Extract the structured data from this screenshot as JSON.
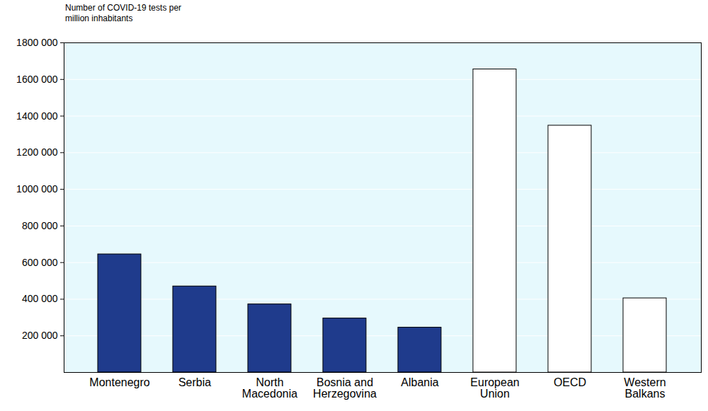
{
  "chart_data": {
    "type": "bar",
    "y_label": "Number of COVID-19 tests per million inhabitants",
    "categories": [
      "Montenegro",
      "Serbia",
      "North Macedonia",
      "Bosnia and Herzegovina",
      "Albania",
      "European Union",
      "OECD",
      "Western Balkans"
    ],
    "values": [
      645000,
      470000,
      372000,
      295000,
      245000,
      1655000,
      1348000,
      405000
    ],
    "colors": [
      "#1f3b8c",
      "#1f3b8c",
      "#1f3b8c",
      "#1f3b8c",
      "#1f3b8c",
      "#ffffff",
      "#ffffff",
      "#ffffff"
    ],
    "ylim": [
      0,
      1800000
    ],
    "yticks": [
      {
        "value": 200000,
        "label": "200 000"
      },
      {
        "value": 400000,
        "label": "400 000"
      },
      {
        "value": 600000,
        "label": "600 000"
      },
      {
        "value": 800000,
        "label": "800 000"
      },
      {
        "value": 1000000,
        "label": "1000 000"
      },
      {
        "value": 1200000,
        "label": "1200 000"
      },
      {
        "value": 1400000,
        "label": "1400 000"
      },
      {
        "value": 1600000,
        "label": "1600 000"
      },
      {
        "value": 1800000,
        "label": "1800 000"
      }
    ],
    "grid": true
  }
}
